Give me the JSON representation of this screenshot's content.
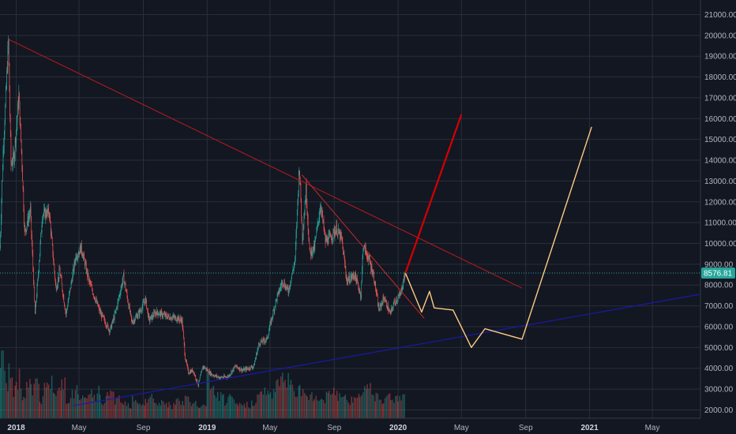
{
  "chart_data": {
    "type": "candlestick",
    "title": "",
    "colors": {
      "background": "#131722",
      "grid": "#2a2e39",
      "up": "#26a69a",
      "down": "#ef5350",
      "volume_up": "#26a69a",
      "volume_down": "#ef5350",
      "axis_text": "#b2b5be",
      "price_tag_bg": "#26a69a",
      "price_line": "#26a69a",
      "major_trendline": "#b71c1c",
      "minor_trendline": "#c62828",
      "support_line": "#1a1aa6",
      "bull_projection": "#d50000",
      "alt_projection": "#ffcc80"
    },
    "y_axis": {
      "ylim": [
        1600,
        21700
      ],
      "ticks": [
        "2000.00",
        "3000.00",
        "4000.00",
        "5000.00",
        "6000.00",
        "7000.00",
        "8000.00",
        "9000.00",
        "10000.00",
        "11000.00",
        "12000.00",
        "13000.00",
        "14000.00",
        "15000.00",
        "16000.00",
        "17000.00",
        "18000.00",
        "19000.00",
        "20000.00",
        "21000.00"
      ]
    },
    "x_axis": {
      "range": [
        "2017-12-01",
        "2021-08-01"
      ],
      "ticks": [
        {
          "date": "2018-01-01",
          "label": "2018",
          "major": true
        },
        {
          "date": "2018-05-01",
          "label": "May",
          "major": false
        },
        {
          "date": "2018-09-01",
          "label": "Sep",
          "major": false
        },
        {
          "date": "2019-01-01",
          "label": "2019",
          "major": true
        },
        {
          "date": "2019-05-01",
          "label": "May",
          "major": false
        },
        {
          "date": "2019-09-01",
          "label": "Sep",
          "major": false
        },
        {
          "date": "2020-01-01",
          "label": "2020",
          "major": true
        },
        {
          "date": "2020-05-01",
          "label": "May",
          "major": false
        },
        {
          "date": "2020-09-01",
          "label": "Sep",
          "major": false
        },
        {
          "date": "2021-01-01",
          "label": "2021",
          "major": true
        },
        {
          "date": "2021-05-01",
          "label": "May",
          "major": false
        }
      ]
    },
    "last_price": "8576.81",
    "last_price_value": 8576.81,
    "price_path": [
      [
        "2017-12-01",
        9800
      ],
      [
        "2017-12-07",
        14500
      ],
      [
        "2017-12-12",
        17000
      ],
      [
        "2017-12-17",
        19700
      ],
      [
        "2017-12-22",
        13800
      ],
      [
        "2017-12-28",
        14200
      ],
      [
        "2018-01-06",
        17100
      ],
      [
        "2018-01-12",
        13900
      ],
      [
        "2018-01-17",
        10500
      ],
      [
        "2018-01-28",
        11600
      ],
      [
        "2018-02-06",
        6600
      ],
      [
        "2018-02-12",
        8500
      ],
      [
        "2018-02-20",
        11400
      ],
      [
        "2018-03-05",
        11500
      ],
      [
        "2018-03-18",
        7800
      ],
      [
        "2018-03-25",
        8700
      ],
      [
        "2018-04-06",
        6600
      ],
      [
        "2018-04-25",
        9400
      ],
      [
        "2018-05-05",
        9800
      ],
      [
        "2018-05-20",
        8200
      ],
      [
        "2018-06-10",
        6700
      ],
      [
        "2018-06-29",
        5800
      ],
      [
        "2018-07-10",
        6700
      ],
      [
        "2018-07-25",
        8400
      ],
      [
        "2018-08-10",
        6200
      ],
      [
        "2018-08-25",
        6700
      ],
      [
        "2018-09-05",
        7300
      ],
      [
        "2018-09-12",
        6300
      ],
      [
        "2018-09-25",
        6700
      ],
      [
        "2018-10-15",
        6500
      ],
      [
        "2018-11-05",
        6400
      ],
      [
        "2018-11-14",
        6300
      ],
      [
        "2018-11-20",
        4500
      ],
      [
        "2018-11-26",
        3800
      ],
      [
        "2018-12-05",
        3900
      ],
      [
        "2018-12-15",
        3200
      ],
      [
        "2018-12-24",
        4100
      ],
      [
        "2019-01-10",
        3700
      ],
      [
        "2019-01-25",
        3550
      ],
      [
        "2019-02-10",
        3600
      ],
      [
        "2019-02-24",
        4100
      ],
      [
        "2019-03-10",
        3900
      ],
      [
        "2019-03-31",
        4100
      ],
      [
        "2019-04-10",
        5200
      ],
      [
        "2019-04-25",
        5400
      ],
      [
        "2019-05-12",
        7200
      ],
      [
        "2019-05-25",
        8200
      ],
      [
        "2019-06-05",
        7700
      ],
      [
        "2019-06-18",
        9200
      ],
      [
        "2019-06-26",
        13800
      ],
      [
        "2019-07-02",
        10300
      ],
      [
        "2019-07-09",
        12600
      ],
      [
        "2019-07-16",
        9500
      ],
      [
        "2019-07-25",
        9800
      ],
      [
        "2019-08-06",
        11900
      ],
      [
        "2019-08-15",
        10100
      ],
      [
        "2019-08-25",
        10300
      ],
      [
        "2019-09-05",
        10700
      ],
      [
        "2019-09-15",
        10200
      ],
      [
        "2019-09-25",
        8200
      ],
      [
        "2019-10-10",
        8500
      ],
      [
        "2019-10-22",
        7500
      ],
      [
        "2019-10-26",
        9900
      ],
      [
        "2019-11-05",
        9300
      ],
      [
        "2019-11-15",
        8500
      ],
      [
        "2019-11-25",
        6800
      ],
      [
        "2019-12-05",
        7400
      ],
      [
        "2019-12-17",
        6600
      ],
      [
        "2019-12-25",
        7200
      ],
      [
        "2020-01-05",
        7500
      ],
      [
        "2020-01-10",
        8100
      ],
      [
        "2020-01-15",
        8576.81
      ]
    ],
    "volume_series": [
      0.85,
      0.55,
      0.7,
      0.45,
      0.6,
      0.35,
      0.5,
      0.4,
      0.65,
      0.3,
      0.45,
      0.5,
      0.35,
      0.4,
      0.55,
      0.3,
      0.35,
      0.4,
      0.3,
      0.25,
      0.35,
      0.3,
      0.4,
      0.25,
      0.3,
      0.35,
      0.28,
      0.3,
      0.25,
      0.2,
      0.3,
      0.25,
      0.22,
      0.28,
      0.3,
      0.2,
      0.25,
      0.22,
      0.2,
      0.18,
      0.25,
      0.2,
      0.3,
      0.22,
      0.2,
      0.18,
      0.2,
      0.55,
      0.4,
      0.35,
      0.3,
      0.25,
      0.28,
      0.22,
      0.2,
      0.18,
      0.2,
      0.25,
      0.3,
      0.35,
      0.4,
      0.35,
      0.45,
      0.5,
      0.55,
      0.6,
      0.5,
      0.4,
      0.45,
      0.35,
      0.3,
      0.32,
      0.28,
      0.3,
      0.38,
      0.45,
      0.35,
      0.3,
      0.28,
      0.25,
      0.3,
      0.35,
      0.4,
      0.5,
      0.45,
      0.35,
      0.3,
      0.28,
      0.32,
      0.3,
      0.35,
      0.3
    ],
    "drawings": [
      {
        "name": "major-downtrend-line",
        "color": "#b71c1c",
        "width": 1,
        "points": [
          [
            "2017-12-18",
            19800
          ],
          [
            "2020-08-25",
            7850
          ]
        ]
      },
      {
        "name": "minor-downtrend-line",
        "color": "#c62828",
        "width": 1,
        "points": [
          [
            "2019-07-01",
            13300
          ],
          [
            "2020-02-20",
            6400
          ]
        ]
      },
      {
        "name": "ascending-support-line",
        "color": "#1a1aa6",
        "width": 1.2,
        "points": [
          [
            "2018-04-20",
            2200
          ],
          [
            "2021-07-30",
            7550
          ]
        ]
      },
      {
        "name": "bull-projection-path",
        "color": "#d50000",
        "width": 2.2,
        "points": [
          [
            "2020-01-15",
            8576.81
          ],
          [
            "2020-05-01",
            16200
          ]
        ]
      },
      {
        "name": "alt-projection-path",
        "color": "#ffcc80",
        "width": 1.4,
        "points": [
          [
            "2020-01-15",
            8576.81
          ],
          [
            "2020-02-15",
            6700
          ],
          [
            "2020-03-01",
            7700
          ],
          [
            "2020-03-10",
            6900
          ],
          [
            "2020-04-15",
            6800
          ],
          [
            "2020-05-20",
            5000
          ],
          [
            "2020-06-15",
            5900
          ],
          [
            "2020-08-25",
            5400
          ],
          [
            "2021-01-05",
            15600
          ]
        ]
      }
    ]
  }
}
